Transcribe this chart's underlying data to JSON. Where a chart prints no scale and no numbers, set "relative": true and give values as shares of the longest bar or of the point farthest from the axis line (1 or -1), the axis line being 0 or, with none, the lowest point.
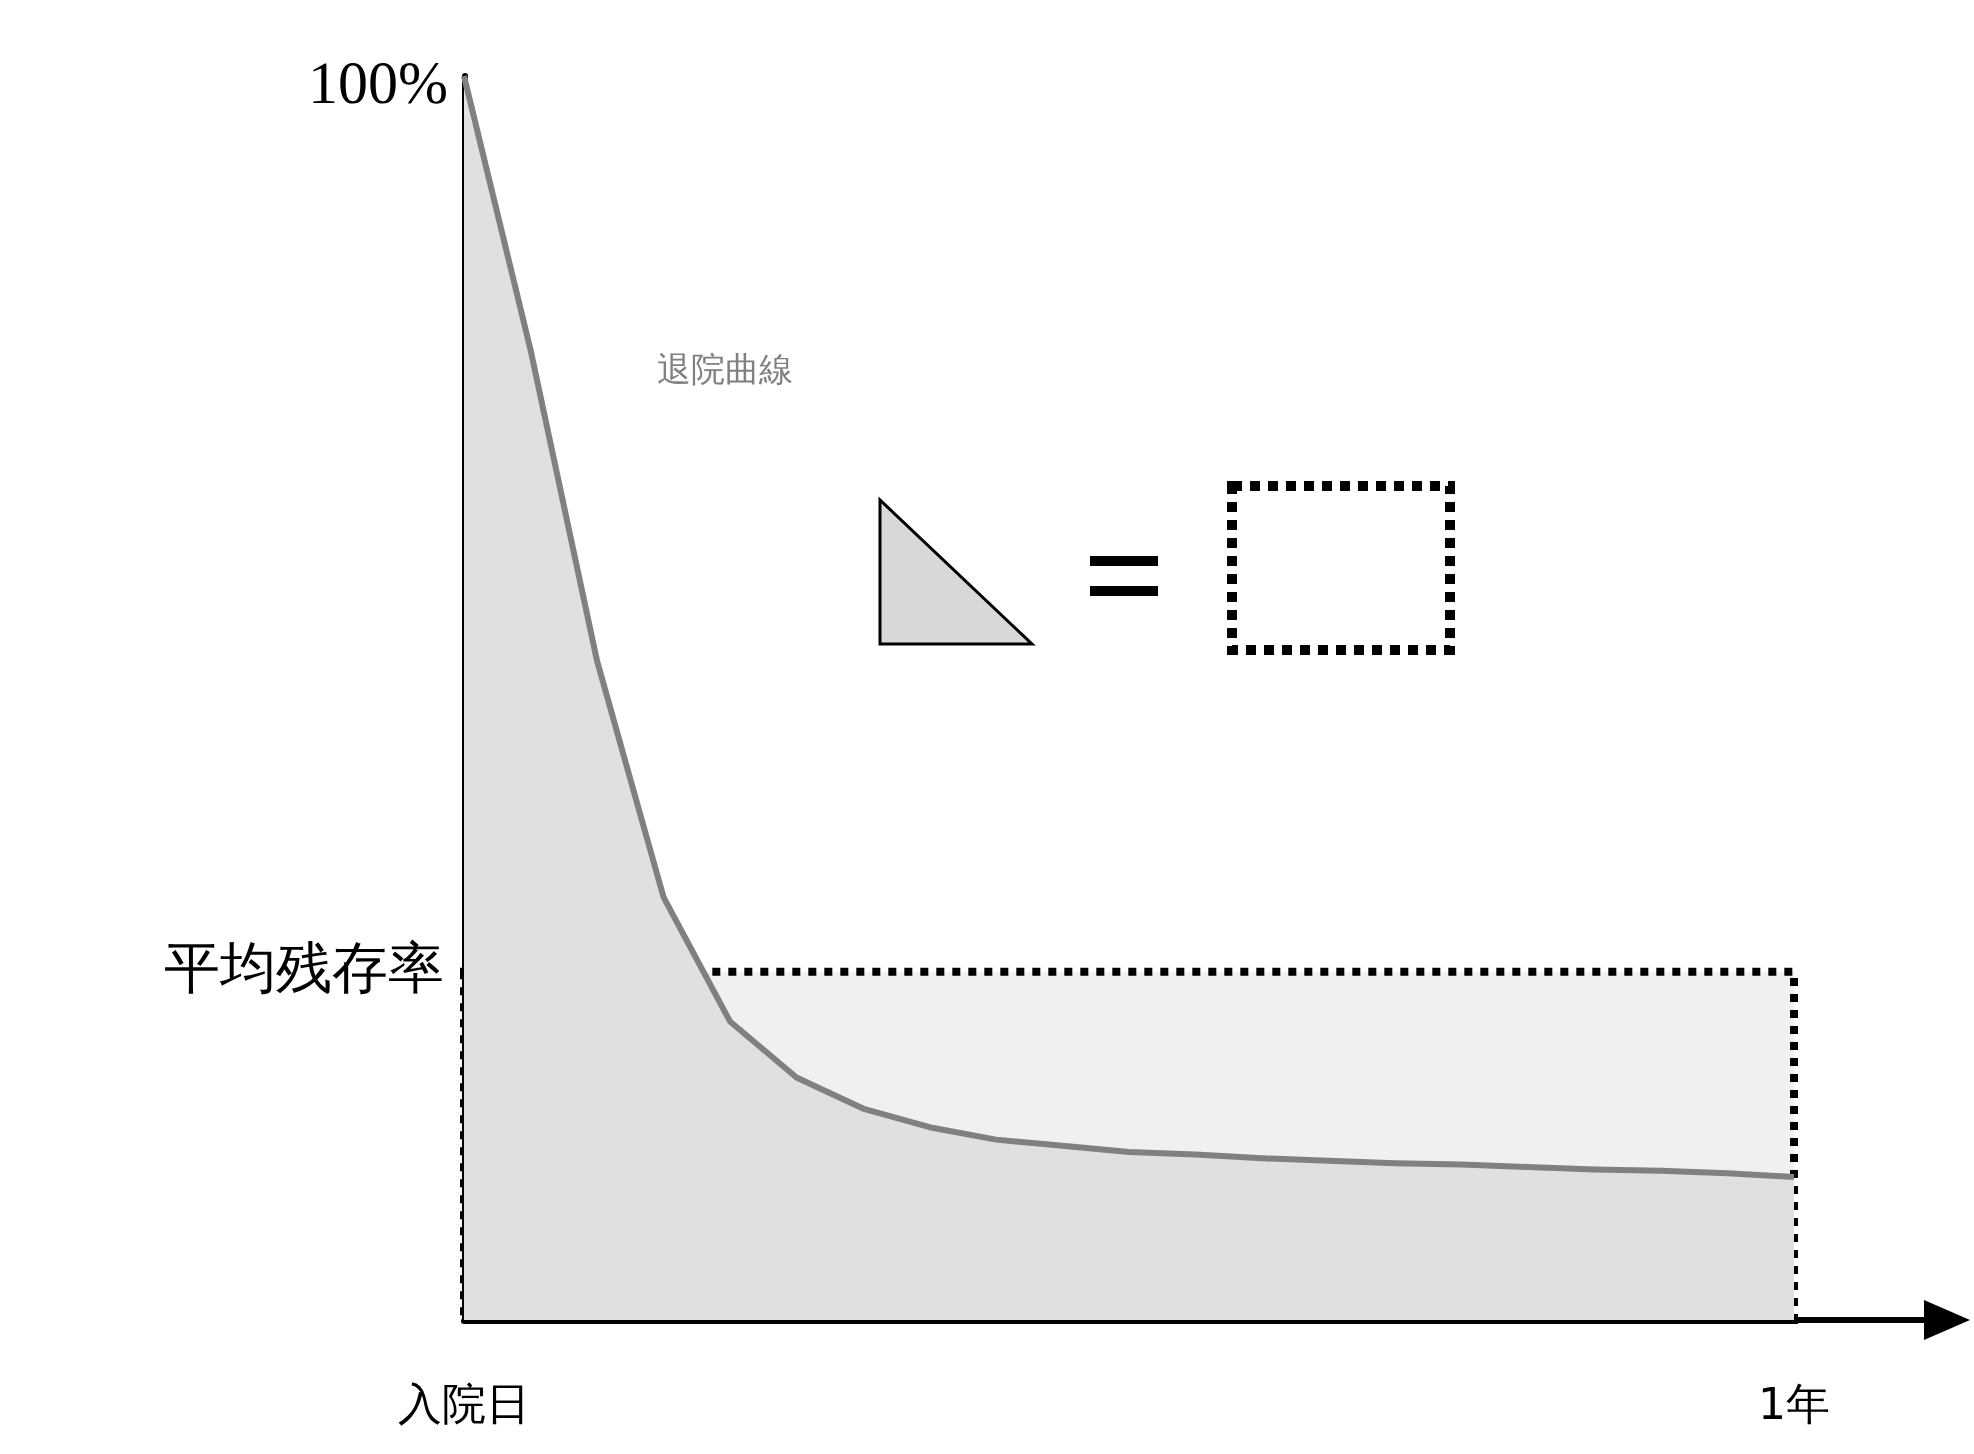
{
  "chart_data": {
    "type": "area",
    "relative": true,
    "categories": [
      "入院日",
      null,
      null,
      null,
      null,
      null,
      null,
      null,
      null,
      null,
      null,
      null,
      null,
      null,
      null,
      null,
      null,
      null,
      null,
      null,
      "1年"
    ],
    "series": [
      {
        "name": "退院曲線",
        "color": "#808080",
        "values": [
          1.0,
          0.78,
          0.53,
          0.34,
          0.24,
          0.195,
          0.17,
          0.155,
          0.145,
          0.14,
          0.135,
          0.133,
          0.13,
          0.128,
          0.126,
          0.125,
          0.123,
          0.121,
          0.12,
          0.118,
          0.115
        ]
      }
    ],
    "bands": [
      {
        "axis": "y",
        "from": 0,
        "to": 0.28,
        "label": "平均残存率",
        "color": "#000000"
      }
    ],
    "annotations": [
      "100%"
    ],
    "grid": false,
    "legend": false,
    "marker": "none"
  }
}
